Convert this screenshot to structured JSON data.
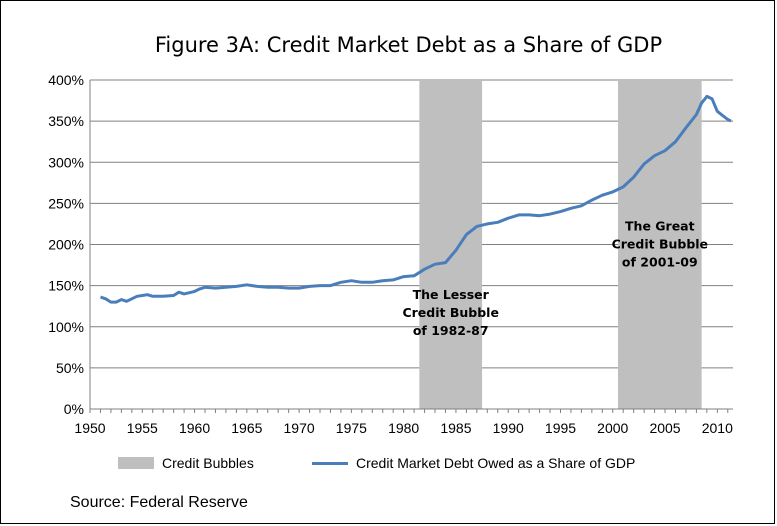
{
  "chart_data": {
    "type": "line",
    "title": "Figure 3A: Credit Market Debt as a Share of GDP",
    "xlabel": "",
    "ylabel": "",
    "xlim": [
      1950,
      2011.5
    ],
    "ylim": [
      0,
      400
    ],
    "x_ticks": [
      "1950",
      "1955",
      "1960",
      "1965",
      "1970",
      "1975",
      "1980",
      "1985",
      "1990",
      "1995",
      "2000",
      "2005",
      "2010"
    ],
    "y_ticks": [
      "0%",
      "50%",
      "100%",
      "150%",
      "200%",
      "250%",
      "300%",
      "350%",
      "400%"
    ],
    "grid": "horizontal",
    "legend_position": "bottom",
    "shaded_regions": [
      {
        "name": "Credit Bubbles",
        "start": 1981.5,
        "end": 1987.5,
        "color": "#bfbfbf"
      },
      {
        "name": "Credit Bubbles",
        "start": 2000.5,
        "end": 2008.5,
        "color": "#bfbfbf"
      }
    ],
    "annotations": [
      {
        "lines": [
          "The Lesser",
          "Credit Bubble",
          "of 1982-87"
        ],
        "x": 1984.5,
        "y": 134
      },
      {
        "lines": [
          "The Great",
          "Credit Bubble",
          "of 2001-09"
        ],
        "x": 2004.5,
        "y": 217
      }
    ],
    "series": [
      {
        "name": "Credit Market Debt Owed as a Share of GDP",
        "color": "#4a7ebb",
        "points": [
          [
            1951,
            136
          ],
          [
            1951.5,
            134
          ],
          [
            1952,
            130
          ],
          [
            1952.5,
            130
          ],
          [
            1953,
            133
          ],
          [
            1953.5,
            131
          ],
          [
            1954,
            134
          ],
          [
            1954.5,
            137
          ],
          [
            1955,
            138
          ],
          [
            1955.5,
            139
          ],
          [
            1956,
            137
          ],
          [
            1957,
            137
          ],
          [
            1958,
            138
          ],
          [
            1958.5,
            142
          ],
          [
            1959,
            140
          ],
          [
            1960,
            143
          ],
          [
            1960.5,
            146
          ],
          [
            1961,
            148
          ],
          [
            1962,
            147
          ],
          [
            1963,
            148
          ],
          [
            1964,
            149
          ],
          [
            1965,
            151
          ],
          [
            1966,
            149
          ],
          [
            1967,
            148
          ],
          [
            1968,
            148
          ],
          [
            1969,
            147
          ],
          [
            1970,
            147
          ],
          [
            1971,
            149
          ],
          [
            1972,
            150
          ],
          [
            1973,
            150
          ],
          [
            1974,
            154
          ],
          [
            1975,
            156
          ],
          [
            1976,
            154
          ],
          [
            1977,
            154
          ],
          [
            1978,
            156
          ],
          [
            1979,
            157
          ],
          [
            1980,
            161
          ],
          [
            1981,
            162
          ],
          [
            1982,
            170
          ],
          [
            1983,
            176
          ],
          [
            1984,
            178
          ],
          [
            1985,
            193
          ],
          [
            1986,
            212
          ],
          [
            1987,
            222
          ],
          [
            1988,
            225
          ],
          [
            1989,
            227
          ],
          [
            1990,
            232
          ],
          [
            1991,
            236
          ],
          [
            1992,
            236
          ],
          [
            1993,
            235
          ],
          [
            1994,
            237
          ],
          [
            1995,
            240
          ],
          [
            1996,
            244
          ],
          [
            1997,
            247
          ],
          [
            1998,
            254
          ],
          [
            1999,
            260
          ],
          [
            2000,
            264
          ],
          [
            2001,
            270
          ],
          [
            2002,
            282
          ],
          [
            2003,
            298
          ],
          [
            2004,
            308
          ],
          [
            2005,
            314
          ],
          [
            2006,
            325
          ],
          [
            2007,
            342
          ],
          [
            2008,
            358
          ],
          [
            2008.5,
            372
          ],
          [
            2009,
            380
          ],
          [
            2009.5,
            377
          ],
          [
            2010,
            362
          ],
          [
            2010.5,
            357
          ],
          [
            2011,
            352
          ],
          [
            2011.3,
            350
          ]
        ]
      }
    ]
  },
  "legend": {
    "items": [
      {
        "label": "Credit Bubbles"
      },
      {
        "label": "Credit Market Debt Owed as a Share of GDP"
      }
    ]
  },
  "source": "Source: Federal Reserve"
}
